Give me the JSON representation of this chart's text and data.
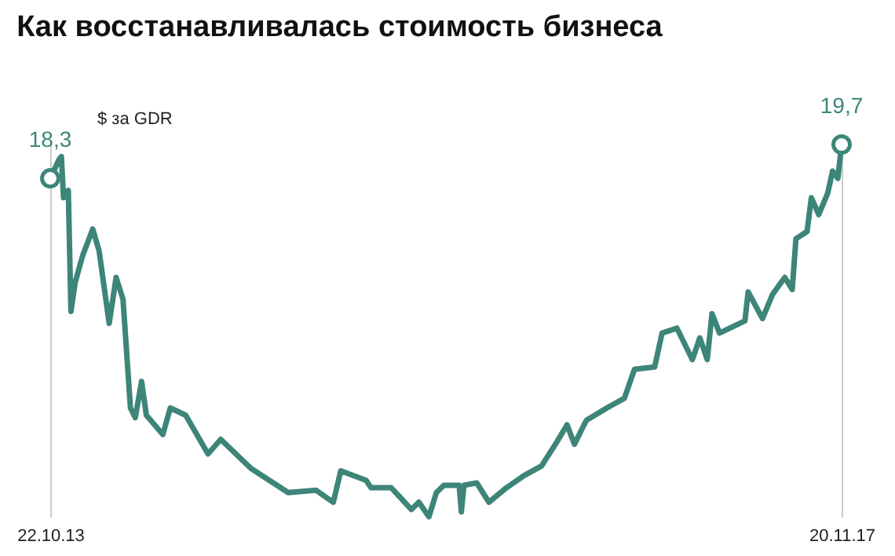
{
  "chart_data": {
    "type": "line",
    "title": "Как восстанавливалась стоимость бизнеса",
    "subtitle": "$ за GDR",
    "tick_labels": "x",
    "grid": "x",
    "xticks": [
      {
        "value": "2013-10-22",
        "label": "22.10.13"
      },
      {
        "value": "2017-11-20",
        "label": "20.11.17"
      }
    ],
    "xlim": [
      "2013-10-22",
      "2017-11-20"
    ],
    "series": [
      {
        "color": "#3d8579",
        "x": [
          "2013-10-22",
          "2013-11-08",
          "2013-11-12",
          "2013-11-16",
          "2013-11-25",
          "2013-11-30",
          "2013-12-08",
          "2013-12-22",
          "2014-01-10",
          "2014-01-22",
          "2014-02-10",
          "2014-02-23",
          "2014-03-08",
          "2014-03-22",
          "2014-03-31",
          "2014-04-12",
          "2014-04-21",
          "2014-05-22",
          "2014-06-05",
          "2014-07-04",
          "2014-08-15",
          "2014-09-08",
          "2014-11-04",
          "2015-01-13",
          "2015-03-06",
          "2015-04-08",
          "2015-04-22",
          "2015-06-09",
          "2015-06-18",
          "2015-07-26",
          "2015-09-02",
          "2015-09-16",
          "2015-10-05",
          "2015-10-19",
          "2015-11-02",
          "2015-12-01",
          "2015-12-05",
          "2015-12-10",
          "2016-01-03",
          "2016-01-26",
          "2016-02-28",
          "2016-04-01",
          "2016-05-04",
          "2016-06-02",
          "2016-06-21",
          "2016-07-05",
          "2016-07-23",
          "2016-07-28",
          "2016-09-04",
          "2016-10-07",
          "2016-10-26",
          "2016-12-03",
          "2016-12-17",
          "2017-01-14",
          "2017-02-12",
          "2017-02-26",
          "2017-03-12",
          "2017-03-21",
          "2017-04-04",
          "2017-05-22",
          "2017-05-28",
          "2017-06-24",
          "2017-07-13",
          "2017-08-05",
          "2017-08-19",
          "2017-08-26",
          "2017-09-16",
          "2017-09-24",
          "2017-10-08",
          "2017-10-25",
          "2017-11-03",
          "2017-11-13",
          "2017-11-20"
        ],
        "values": [
          18.3,
          19.1,
          19.2,
          17.5,
          17.8,
          12.8,
          14.0,
          15.1,
          16.2,
          15.3,
          12.3,
          14.2,
          13.3,
          8.8,
          8.4,
          9.9,
          8.5,
          7.7,
          8.8,
          8.5,
          6.9,
          7.5,
          6.3,
          5.3,
          5.4,
          4.9,
          6.2,
          5.8,
          5.5,
          5.5,
          4.6,
          4.9,
          4.3,
          5.3,
          5.6,
          5.6,
          4.5,
          5.6,
          5.7,
          4.9,
          5.5,
          6.0,
          6.4,
          7.4,
          8.1,
          7.3,
          8.1,
          8.3,
          8.8,
          9.2,
          10.4,
          10.5,
          11.9,
          12.1,
          10.8,
          11.7,
          10.8,
          12.7,
          11.9,
          12.4,
          13.6,
          12.5,
          13.5,
          14.2,
          13.7,
          15.8,
          16.1,
          17.5,
          16.8,
          17.7,
          18.6,
          18.3,
          19.7
        ],
        "value_labels": [
          "18,3",
          null,
          null,
          null,
          null,
          null,
          null,
          null,
          null,
          null,
          null,
          null,
          null,
          null,
          null,
          null,
          null,
          null,
          null,
          null,
          null,
          null,
          null,
          null,
          null,
          null,
          null,
          null,
          null,
          null,
          null,
          null,
          null,
          null,
          null,
          null,
          null,
          null,
          null,
          null,
          null,
          null,
          null,
          null,
          null,
          null,
          null,
          null,
          null,
          null,
          null,
          null,
          null,
          null,
          null,
          null,
          null,
          null,
          null,
          null,
          null,
          null,
          null,
          null,
          null,
          null,
          null,
          null,
          null,
          null,
          null,
          null,
          "19,7"
        ]
      }
    ]
  }
}
